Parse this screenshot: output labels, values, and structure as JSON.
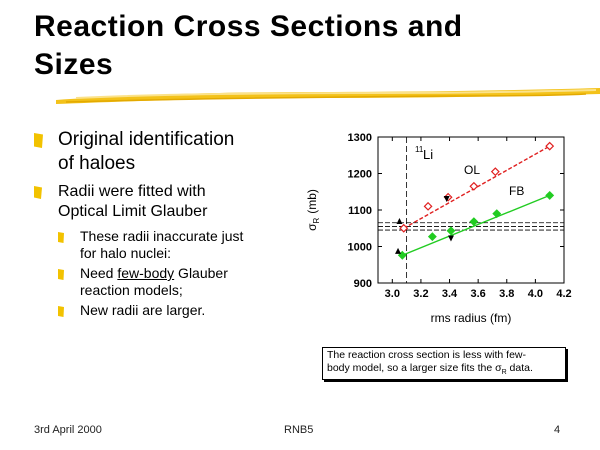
{
  "slide": {
    "title_line1": "Reaction Cross Sections and",
    "title_line2": "Sizes",
    "bullets": [
      {
        "line1": "Original identification",
        "line2": "of haloes"
      },
      {
        "line1": "Radii were fitted with",
        "line2": "Optical Limit Glauber"
      }
    ],
    "subbullets": [
      {
        "line1": "These radii inaccurate just",
        "line2": "for halo nuclei:"
      },
      {
        "pre": "Need ",
        "underlined": "few-body",
        "post": " Glauber",
        "line2": "reaction models;"
      },
      {
        "line1": "New radii are larger."
      }
    ],
    "caption_line1": "The reaction cross section is less with few-",
    "caption_line2_pre": "body model, so a larger size fits the ",
    "caption_sigma": "σ",
    "caption_sub": "R",
    "caption_post": " data.",
    "footer_left": "3rd April 2000",
    "footer_center": "RNB5",
    "footer_right": "4",
    "bullet_color": "#f2c200"
  },
  "chart_data": {
    "type": "scatter",
    "xlabel": "rms radius (fm)",
    "ylabel_sym": "σ",
    "ylabel_sub": "R",
    "ylabel_unit": "(mb)",
    "xlim": [
      2.9,
      4.2
    ],
    "ylim": [
      900,
      1300
    ],
    "xticks": [
      "3.0",
      "3.2",
      "3.4",
      "3.6",
      "3.8",
      "4.0",
      "4.2"
    ],
    "xtick_values": [
      3.0,
      3.2,
      3.4,
      3.6,
      3.8,
      4.0,
      4.2
    ],
    "yticks": [
      "900",
      "1000",
      "1100",
      "1200",
      "1300"
    ],
    "ytick_values": [
      900,
      1000,
      1100,
      1200,
      1300
    ],
    "annotation_nucleus_mass": "11",
    "annotation_nucleus": "Li",
    "series": [
      {
        "name": "OL",
        "color": "#e02020",
        "marker": "open-diamond",
        "x": [
          3.08,
          3.25,
          3.39,
          3.57,
          3.72,
          4.1
        ],
        "y": [
          1050,
          1110,
          1135,
          1165,
          1205,
          1275
        ]
      },
      {
        "name": "FB",
        "color": "#22cc22",
        "marker": "filled-diamond",
        "x": [
          3.07,
          3.28,
          3.41,
          3.57,
          3.73,
          4.1
        ],
        "y": [
          976,
          1027,
          1043,
          1068,
          1090,
          1140
        ]
      }
    ],
    "extra_points": [
      {
        "x": 3.38,
        "y": 1130,
        "marker": "down-triangle"
      },
      {
        "x": 3.41,
        "y": 1022,
        "marker": "down-triangle"
      },
      {
        "x": 3.05,
        "y": 1070,
        "marker": "triangle"
      },
      {
        "x": 3.04,
        "y": 988,
        "marker": "triangle"
      }
    ],
    "band": [
      1045,
      1055,
      1065
    ],
    "vline_x": 3.1
  }
}
